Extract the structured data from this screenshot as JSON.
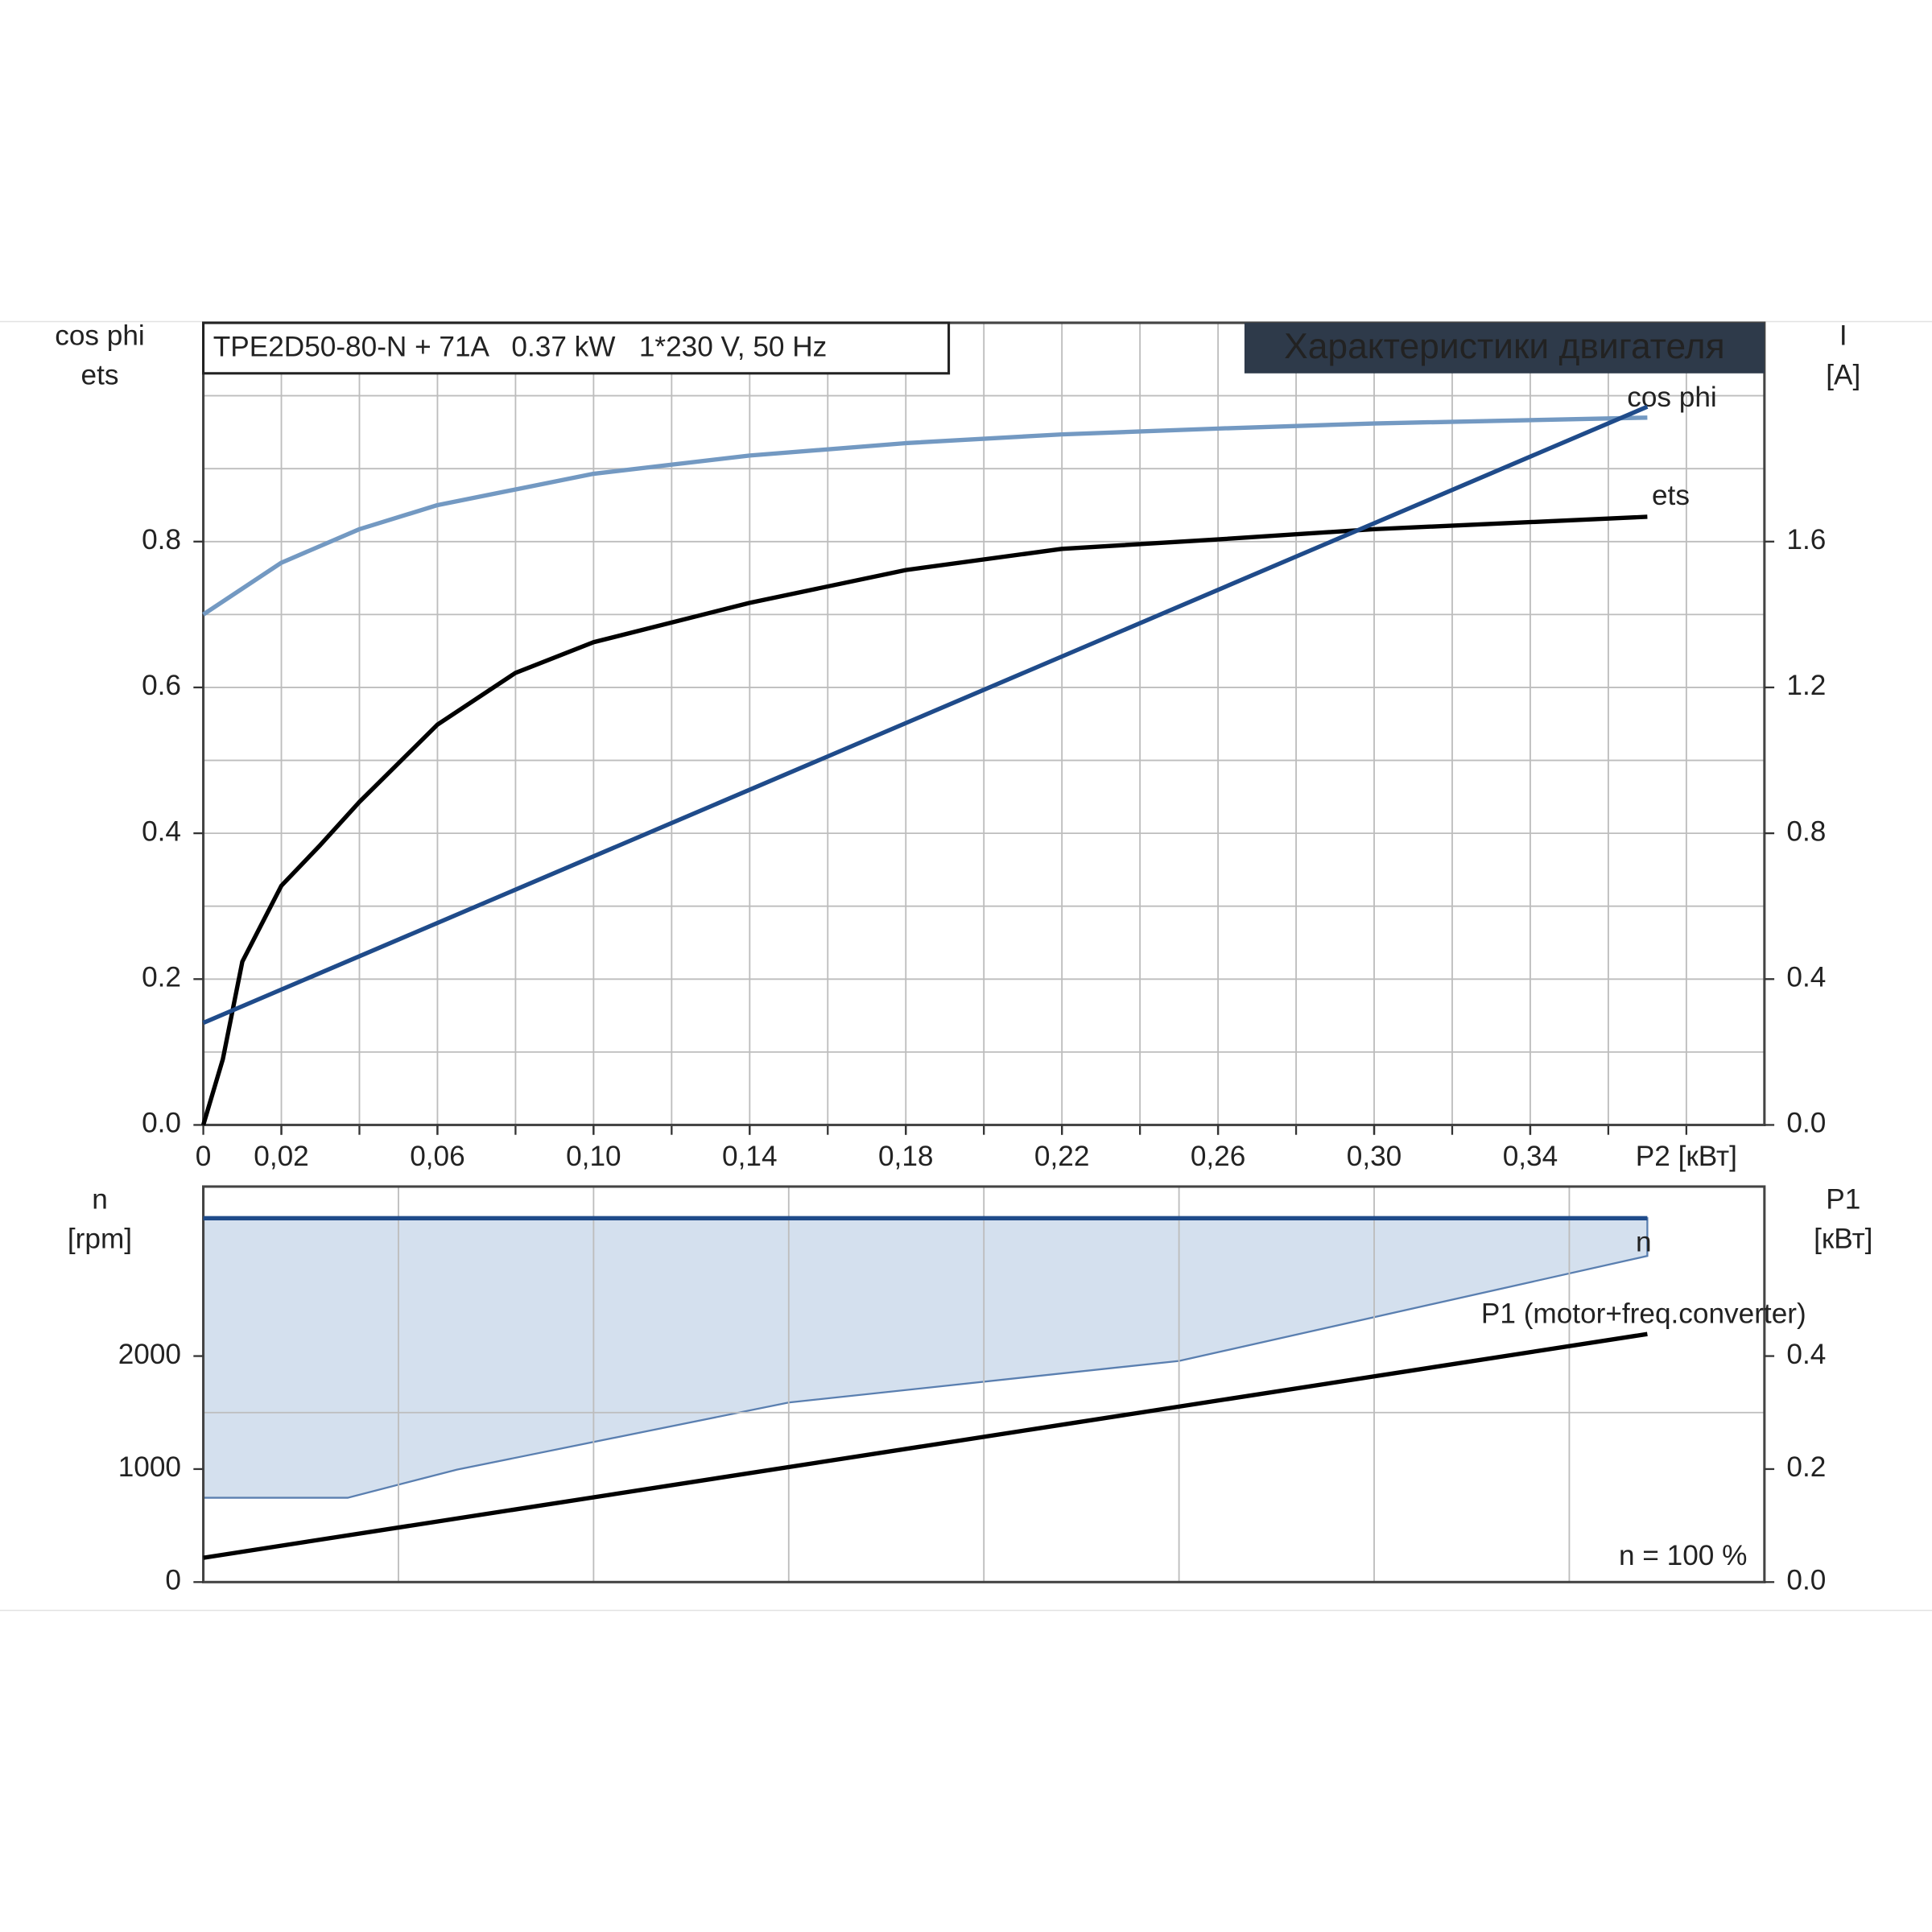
{
  "chart_data": [
    {
      "type": "line",
      "title": "TPE2D50-80-N + 71A   0.37 kW   1*230 V, 50 Hz",
      "header": "Характеристики двигателя",
      "xlabel": "P2 [кВт]",
      "ylabel": [
        "cos phi",
        "ets"
      ],
      "y2label": [
        "I",
        "[A]"
      ],
      "xlim": [
        0,
        0.4
      ],
      "ylim": [
        0,
        1.1
      ],
      "y2lim": [
        0,
        2.2
      ],
      "xticks": [
        0,
        {
          "value": 0.02,
          "label": "0,02"
        },
        {
          "value": 0.06,
          "label": "0,06"
        },
        {
          "value": 0.1,
          "label": "0,10"
        },
        {
          "value": 0.14,
          "label": "0,14"
        },
        {
          "value": 0.18,
          "label": "0,18"
        },
        {
          "value": 0.22,
          "label": "0,22"
        },
        {
          "value": 0.26,
          "label": "0,26"
        },
        {
          "value": 0.3,
          "label": "0,30"
        },
        {
          "value": 0.34,
          "label": "0,34"
        }
      ],
      "xgrid": [
        0.02,
        0.04,
        0.06,
        0.08,
        0.1,
        0.12,
        0.14,
        0.16,
        0.18,
        0.2,
        0.22,
        0.24,
        0.26,
        0.28,
        0.3,
        0.32,
        0.34,
        0.36,
        0.38
      ],
      "yticks": [
        {
          "value": 0,
          "label": "0.0"
        },
        0.2,
        0.4,
        0.6,
        0.8
      ],
      "y2ticks": [
        {
          "value": 0,
          "label": "0.0"
        },
        0.4,
        0.8,
        1.2,
        1.6
      ],
      "ygrid": [
        0.1,
        0.2,
        0.3,
        0.4,
        0.5,
        0.6,
        0.7,
        0.8,
        0.9,
        1.0
      ],
      "series": [
        {
          "name": "cos phi",
          "color": "#7399c2",
          "x": [
            0,
            0.02,
            0.04,
            0.06,
            0.1,
            0.14,
            0.18,
            0.22,
            0.26,
            0.3,
            0.37
          ],
          "values": [
            0.7,
            0.771,
            0.817,
            0.85,
            0.893,
            0.918,
            0.935,
            0.947,
            0.955,
            0.962,
            0.97
          ]
        },
        {
          "name": "ets",
          "color": "#000000",
          "x": [
            0,
            0.005,
            0.01,
            0.02,
            0.03,
            0.04,
            0.06,
            0.08,
            0.1,
            0.14,
            0.18,
            0.22,
            0.26,
            0.3,
            0.37
          ],
          "values": [
            0,
            0.09,
            0.224,
            0.328,
            0.384,
            0.443,
            0.549,
            0.62,
            0.662,
            0.716,
            0.761,
            0.79,
            0.803,
            0.817,
            0.834
          ]
        },
        {
          "color": "#1f4b8a",
          "axis": "y2",
          "x": [
            0,
            0.37
          ],
          "values": [
            0.28,
            1.97
          ]
        }
      ]
    },
    {
      "type": "line",
      "annotation": "n = 100 %",
      "ylabel": [
        "n",
        "[rpm]"
      ],
      "y2label": [
        "P1",
        "[кВт]"
      ],
      "xlim": [
        0,
        0.4
      ],
      "ylim": [
        0,
        3500
      ],
      "y2lim": [
        0,
        0.7
      ],
      "yticks": [
        0,
        1000,
        2000
      ],
      "y2ticks": [
        {
          "value": 0,
          "label": "0.0"
        },
        0.2,
        0.4
      ],
      "xgrid": [
        0.05,
        0.1,
        0.15,
        0.2,
        0.25,
        0.3,
        0.35
      ],
      "ygrid": [
        1500
      ],
      "band": {
        "color": "#d4e0ee",
        "x": [
          0,
          0.037,
          0.065,
          0.15,
          0.25,
          0.37
        ],
        "lower": [
          746,
          746,
          995,
          1589,
          1957,
          2886
        ],
        "upper": [
          3220,
          3220,
          3220,
          3220,
          3220,
          3220
        ]
      },
      "series": [
        {
          "name": "n",
          "color": "#1f4b8a",
          "x": [
            0,
            0.37
          ],
          "values": [
            3220,
            3220
          ]
        },
        {
          "name": "P1 (motor+freq.converter)",
          "color": "#000000",
          "axis": "y2",
          "x": [
            0,
            0.37
          ],
          "values": [
            0.043,
            0.439
          ]
        }
      ]
    }
  ]
}
